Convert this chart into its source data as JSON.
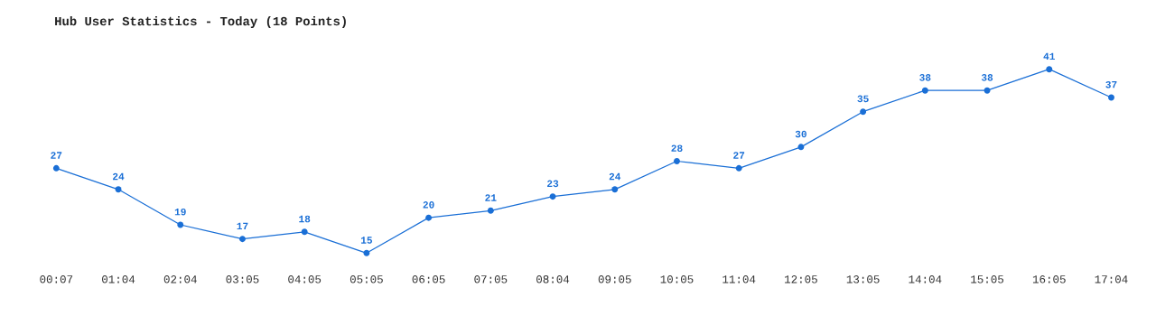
{
  "chart_data": {
    "type": "line",
    "title": "Hub User Statistics - Today (18 Points)",
    "categories": [
      "00:07",
      "01:04",
      "02:04",
      "03:05",
      "04:05",
      "05:05",
      "06:05",
      "07:05",
      "08:04",
      "09:05",
      "10:05",
      "11:04",
      "12:05",
      "13:05",
      "14:04",
      "15:05",
      "16:05",
      "17:04"
    ],
    "series": [
      {
        "color": "#1a6fd6",
        "values": [
          27,
          24,
          19,
          17,
          18,
          15,
          20,
          21,
          23,
          24,
          28,
          27,
          30,
          35,
          38,
          38,
          41,
          37
        ]
      }
    ],
    "data_labels": true,
    "marker": "circle",
    "line_style": "solid",
    "grid": false,
    "legend": false
  }
}
